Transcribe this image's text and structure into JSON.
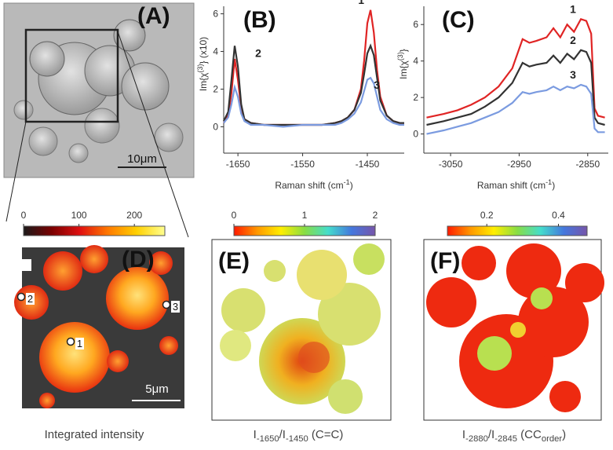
{
  "chart_data": [
    {
      "type": "image",
      "panel_label": "(A)",
      "scale_bar": "10μm"
    },
    {
      "type": "line",
      "panel_label": "(B)",
      "y_label": [
        {
          "text": "Im{χ"
        },
        {
          "text": "(3)",
          "sup": true
        },
        {
          "text": "} (x10)"
        }
      ],
      "x_label": [
        {
          "text": "Raman shift (cm"
        },
        {
          "text": "-1",
          "sup": true
        },
        {
          "text": ")"
        }
      ],
      "x": [
        -1672,
        -1665,
        -1660,
        -1655,
        -1650,
        -1645,
        -1640,
        -1630,
        -1610,
        -1580,
        -1550,
        -1520,
        -1500,
        -1490,
        -1480,
        -1470,
        -1460,
        -1455,
        -1450,
        -1445,
        -1440,
        -1435,
        -1430,
        -1420,
        -1410,
        -1400,
        -1393
      ],
      "series": [
        {
          "name": "1",
          "color": "#e02424",
          "values": [
            0.2,
            0.6,
            1.8,
            3.6,
            2.5,
            1.0,
            0.4,
            0.2,
            0.1,
            0.1,
            0.1,
            0.1,
            0.2,
            0.3,
            0.5,
            0.9,
            2.0,
            3.5,
            5.5,
            6.2,
            5.0,
            3.0,
            1.6,
            0.6,
            0.3,
            0.2,
            0.2
          ]
        },
        {
          "name": "2",
          "color": "#333333",
          "values": [
            0.3,
            0.8,
            2.5,
            4.3,
            3.2,
            1.2,
            0.4,
            0.2,
            0.1,
            0.1,
            0.1,
            0.1,
            0.2,
            0.3,
            0.5,
            0.9,
            1.8,
            2.8,
            3.9,
            4.3,
            3.8,
            2.6,
            1.4,
            0.6,
            0.3,
            0.2,
            0.2
          ]
        },
        {
          "name": "3",
          "color": "#7b9be0",
          "values": [
            0.2,
            0.5,
            1.2,
            2.1,
            1.6,
            0.7,
            0.3,
            0.1,
            0.1,
            0.0,
            0.1,
            0.1,
            0.1,
            0.2,
            0.4,
            0.7,
            1.3,
            1.9,
            2.5,
            2.6,
            2.3,
            1.6,
            0.9,
            0.4,
            0.2,
            0.1,
            0.1
          ]
        }
      ],
      "xlim": [
        -1672,
        -1393
      ],
      "ylim": [
        -1.4,
        6.4
      ],
      "xticks": [
        -1650,
        -1550,
        -1450
      ],
      "yticks": [
        0,
        2,
        4,
        6
      ]
    },
    {
      "type": "line",
      "panel_label": "(C)",
      "y_label": [
        {
          "text": "Im{χ"
        },
        {
          "text": "(3)",
          "sup": true
        },
        {
          "text": "}"
        }
      ],
      "x_label": [
        {
          "text": "Raman shift (cm"
        },
        {
          "text": "-1",
          "sup": true
        },
        {
          "text": ")"
        }
      ],
      "x": [
        -3085,
        -3060,
        -3040,
        -3020,
        -3000,
        -2980,
        -2960,
        -2945,
        -2935,
        -2925,
        -2910,
        -2900,
        -2890,
        -2880,
        -2870,
        -2860,
        -2852,
        -2845,
        -2840,
        -2835,
        -2825
      ],
      "series": [
        {
          "name": "1",
          "color": "#e02424",
          "values": [
            0.9,
            1.1,
            1.3,
            1.6,
            2.0,
            2.6,
            3.6,
            5.2,
            5.0,
            5.1,
            5.3,
            5.8,
            5.3,
            6.0,
            5.6,
            6.3,
            6.2,
            5.5,
            1.4,
            1.0,
            0.9
          ]
        },
        {
          "name": "2",
          "color": "#333333",
          "values": [
            0.5,
            0.7,
            0.9,
            1.1,
            1.5,
            2.0,
            2.8,
            3.9,
            3.7,
            3.8,
            3.9,
            4.3,
            3.9,
            4.4,
            4.1,
            4.6,
            4.5,
            3.9,
            0.9,
            0.6,
            0.5
          ]
        },
        {
          "name": "3",
          "color": "#7b9be0",
          "values": [
            0.0,
            0.2,
            0.4,
            0.6,
            0.9,
            1.2,
            1.7,
            2.3,
            2.2,
            2.3,
            2.4,
            2.6,
            2.4,
            2.6,
            2.5,
            2.7,
            2.6,
            2.2,
            0.3,
            0.1,
            0.1
          ]
        }
      ],
      "xlim": [
        -3089,
        -2820
      ],
      "ylim": [
        -1.05,
        7.0
      ],
      "xticks": [
        -3050,
        -2950,
        -2850
      ],
      "yticks": [
        0,
        2,
        4,
        6
      ]
    },
    {
      "type": "map",
      "panel_label": "(D)",
      "clim": [
        0,
        255
      ],
      "colorbar_ticks": [
        0,
        100,
        200
      ],
      "colormap": [
        "#1a1a1a",
        "#7a0000",
        "#e01010",
        "#ff7a00",
        "#ffd000",
        "#ffff90"
      ],
      "markers": [
        "1",
        "2",
        "3"
      ],
      "scale_bar": "5μm",
      "caption": [
        {
          "text": "Integrated intensity"
        }
      ]
    },
    {
      "type": "map",
      "panel_label": "(E)",
      "clim": [
        0,
        2
      ],
      "colorbar_ticks": [
        0,
        1,
        2
      ],
      "colormap": [
        "#ff1a00",
        "#ff9900",
        "#ffee00",
        "#88dd44",
        "#44ddcc",
        "#4477dd",
        "#7755aa"
      ],
      "caption": [
        {
          "text": "I"
        },
        {
          "text": "-1650",
          "sub": true
        },
        {
          "text": "/I"
        },
        {
          "text": "-1450",
          "sub": true
        },
        {
          "text": " (C=C)"
        }
      ]
    },
    {
      "type": "map",
      "panel_label": "(F)",
      "clim": [
        0.09,
        0.48
      ],
      "colorbar_ticks": [
        0.2,
        0.4
      ],
      "colormap": [
        "#ff1a00",
        "#ff9900",
        "#ffee00",
        "#88dd44",
        "#44ddcc",
        "#4477dd",
        "#7755aa"
      ],
      "caption": [
        {
          "text": "I"
        },
        {
          "text": "-2880",
          "sub": true
        },
        {
          "text": "/I"
        },
        {
          "text": "-2845",
          "sub": true
        },
        {
          "text": " (CC"
        },
        {
          "text": "order",
          "sub": true
        },
        {
          "text": ")"
        }
      ]
    }
  ]
}
